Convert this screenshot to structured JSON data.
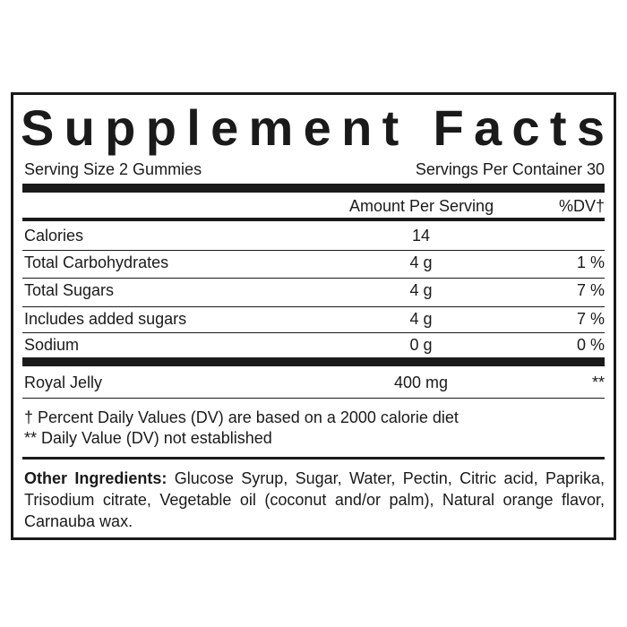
{
  "header": {
    "title": "Supplement Facts",
    "serving_size": "Serving Size 2 Gummies",
    "servings_per_container": "Servings Per Container 30"
  },
  "columns": {
    "amount": "Amount Per Serving",
    "dv": "%DV†"
  },
  "rows": [
    {
      "name": "Calories",
      "amount": "14"
    },
    {
      "name": "Total Carbohydrates",
      "amount": "4 g",
      "dv": "1 %"
    },
    {
      "name": "Total Sugars",
      "amount": "4 g",
      "dv": "7 %"
    },
    {
      "name": "Includes added sugars",
      "amount": "4 g",
      "dv": "7 %"
    },
    {
      "name": "Sodium",
      "amount": "0 g",
      "dv": "0 %"
    },
    {
      "name": "Royal Jelly",
      "amount": "400 mg",
      "dv": "**"
    }
  ],
  "footnotes": [
    "† Percent Daily Values (DV) are based on a 2000 calorie diet",
    "** Daily Value (DV) not established"
  ],
  "other_ingredients": {
    "label": "Other Ingredients:",
    "text": "Glucose Syrup, Sugar, Water, Pectin, Citric acid, Paprika, Trisodium citrate, Vegetable oil (coconut and/or palm), Natural orange flavor, Carnauba wax."
  }
}
